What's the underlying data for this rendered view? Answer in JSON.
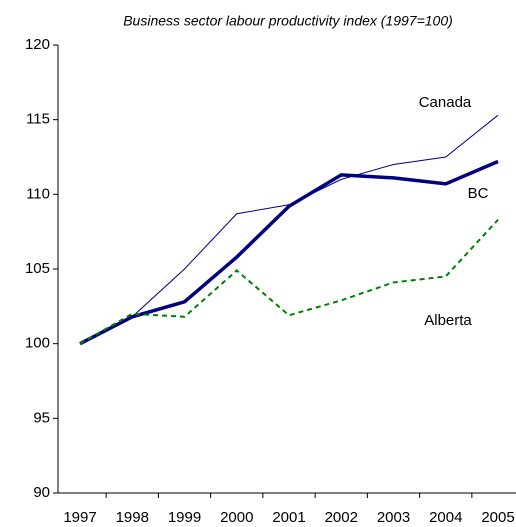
{
  "chart_data": {
    "type": "line",
    "title": "Business sector labour productivity index (1997=100)",
    "categories": [
      "1997",
      "1998",
      "1999",
      "2000",
      "2001",
      "2002",
      "2003",
      "2004",
      "2005"
    ],
    "series": [
      {
        "name": "Canada",
        "color": "#000080",
        "width": 1,
        "dash": false,
        "values": [
          100,
          101.8,
          105,
          108.7,
          109.3,
          111,
          112,
          112.5,
          115.3
        ]
      },
      {
        "name": "BC",
        "color": "#000080",
        "width": 3.5,
        "dash": false,
        "values": [
          100,
          101.8,
          102.8,
          105.8,
          109.2,
          111.3,
          111.1,
          110.7,
          112.2
        ]
      },
      {
        "name": "Alberta",
        "color": "#008000",
        "width": 2,
        "dash": true,
        "values": [
          100,
          102,
          101.8,
          104.9,
          101.9,
          102.9,
          104.1,
          104.5,
          108.3
        ]
      }
    ],
    "ylim": [
      90,
      120
    ],
    "yticks": [
      90,
      95,
      100,
      105,
      110,
      115,
      120
    ],
    "grid": false
  }
}
